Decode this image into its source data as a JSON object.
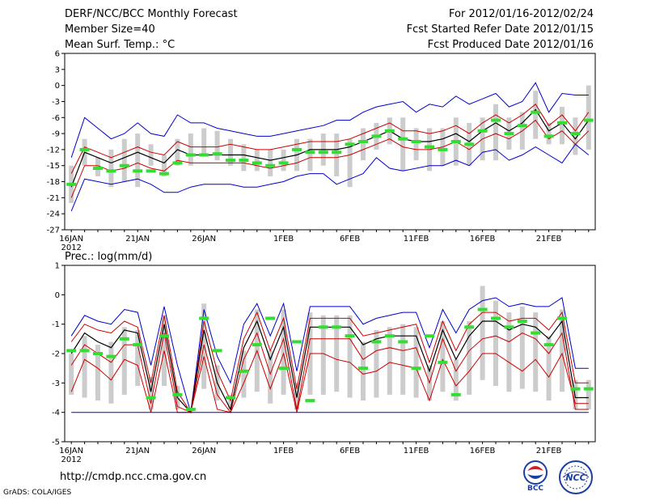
{
  "header": {
    "title": "DERF/NCC/BCC Monthly Forecast",
    "member_size": "Member Size=40",
    "variable_top": "Mean Surf. Temp.: °C",
    "period": "For 2012/01/16-2012/02/24",
    "started": "Fcst Started Refer Date 2012/01/15",
    "produced": "Fcst Produced Date 2012/01/16"
  },
  "footer": {
    "url": "http://cmdp.ncc.cma.gov.cn",
    "credit": "GrADS: COLA/IGES",
    "logo_bcc": "BCC",
    "logo_ncc": "NCC"
  },
  "colors": {
    "envelope": "#0000cc",
    "sigma": "#cc0000",
    "mean": "#000000",
    "obs": "#33dd33",
    "box": "#cccccc"
  },
  "chart_data": [
    {
      "type": "line",
      "title": "Mean Surf. Temp.: °C",
      "xlabel": "",
      "ylabel": "°C",
      "ylim": [
        -27,
        6
      ],
      "yticks": [
        6,
        3,
        0,
        -3,
        -6,
        -9,
        -12,
        -15,
        -18,
        -21,
        -24,
        -27
      ],
      "x": [
        "1/16",
        "1/17",
        "1/18",
        "1/19",
        "1/20",
        "1/21",
        "1/22",
        "1/23",
        "1/24",
        "1/25",
        "1/26",
        "1/27",
        "1/28",
        "1/29",
        "1/30",
        "1/31",
        "2/1",
        "2/2",
        "2/3",
        "2/4",
        "2/5",
        "2/6",
        "2/7",
        "2/8",
        "2/9",
        "2/10",
        "2/11",
        "2/12",
        "2/13",
        "2/14",
        "2/15",
        "2/16",
        "2/17",
        "2/18",
        "2/19",
        "2/20",
        "2/21",
        "2/22",
        "2/23",
        "2/24"
      ],
      "xtick_labels": [
        {
          "i": 0,
          "label": "16JAN",
          "sub": "2012"
        },
        {
          "i": 5,
          "label": "21JAN"
        },
        {
          "i": 10,
          "label": "26JAN"
        },
        {
          "i": 16,
          "label": "1FEB"
        },
        {
          "i": 21,
          "label": "6FEB"
        },
        {
          "i": 26,
          "label": "11FEB"
        },
        {
          "i": 31,
          "label": "16FEB"
        },
        {
          "i": 36,
          "label": "21FEB"
        }
      ],
      "series": [
        {
          "name": "ensemble max",
          "values": [
            -13.5,
            -6,
            -8,
            -10,
            -9,
            -7,
            -9,
            -9.5,
            -5.5,
            -7,
            -7,
            -8,
            -8.5,
            -9,
            -9.5,
            -9.5,
            -9,
            -8.5,
            -8,
            -7.5,
            -6.5,
            -6.5,
            -5,
            -4,
            -3.5,
            -3,
            -5,
            -3.5,
            -4,
            -2,
            -3.5,
            -2.5,
            -1.5,
            -4,
            -3,
            0.5,
            -5,
            -1.5,
            -1.8,
            -1.8
          ]
        },
        {
          "name": "mean + sd",
          "values": [
            -16.5,
            -11.5,
            -12.5,
            -13.5,
            -12.5,
            -11.5,
            -12.5,
            -13,
            -10.5,
            -11.5,
            -11.5,
            -11.5,
            -11,
            -11.5,
            -12,
            -12,
            -11.5,
            -11,
            -10.5,
            -10.5,
            -10.5,
            -10,
            -9,
            -8,
            -7,
            -8.5,
            -8.5,
            -9,
            -8.5,
            -7.5,
            -9,
            -7,
            -5.5,
            -7,
            -5.5,
            -3.5,
            -7.5,
            -5.5,
            -8.5,
            -5
          ]
        },
        {
          "name": "ensemble mean",
          "values": [
            -19,
            -12.5,
            -13.5,
            -14.5,
            -13.5,
            -12.5,
            -13.5,
            -14.5,
            -12,
            -13,
            -13,
            -13,
            -13,
            -13,
            -13.5,
            -14,
            -13.5,
            -13,
            -12,
            -12,
            -12,
            -11.5,
            -10.5,
            -9.5,
            -8.5,
            -10,
            -10.5,
            -10.5,
            -10,
            -9,
            -10.5,
            -8.5,
            -7,
            -8.5,
            -7,
            -4.5,
            -8.5,
            -7,
            -10,
            -6.5
          ]
        },
        {
          "name": "mean - sd",
          "values": [
            -21,
            -15,
            -15,
            -16,
            -15.5,
            -14.5,
            -15.5,
            -16,
            -14,
            -14.5,
            -14.5,
            -14.5,
            -14.5,
            -14.5,
            -15,
            -15.5,
            -15,
            -14.5,
            -13.5,
            -13.5,
            -13.5,
            -13,
            -12,
            -11,
            -10,
            -11.5,
            -12,
            -12,
            -11.5,
            -10.5,
            -12,
            -10,
            -9,
            -10,
            -8.5,
            -6.5,
            -10,
            -8.5,
            -11,
            -8.5
          ]
        },
        {
          "name": "ensemble min",
          "values": [
            -23.5,
            -17.5,
            -18,
            -18.5,
            -18,
            -17.5,
            -18.5,
            -20,
            -20,
            -19,
            -18.5,
            -18.5,
            -18.5,
            -19,
            -19,
            -18.5,
            -18,
            -17,
            -16.5,
            -16.5,
            -18.5,
            -17.5,
            -16.5,
            -13.5,
            -15.5,
            -16,
            -15.5,
            -15,
            -15,
            -14,
            -15,
            -12.5,
            -12,
            -14,
            -13,
            -11.5,
            -13,
            -14.5,
            -11,
            -13
          ]
        },
        {
          "name": "box top (upper quartile)",
          "values": [
            -15,
            -10,
            -13.5,
            -12,
            -10,
            -9,
            -11,
            -13,
            -10,
            -9,
            -8,
            -8.5,
            -10,
            -11,
            -12,
            -12,
            -12,
            -10,
            -10,
            -9,
            -9,
            -10,
            -8,
            -7,
            -6,
            -6,
            -8,
            -8,
            -8,
            -6,
            -7,
            -6,
            -3.5,
            -6,
            -5,
            -1,
            -7,
            -4,
            -6,
            0
          ]
        },
        {
          "name": "box bottom (lower quartile)",
          "values": [
            -22,
            -15,
            -17,
            -19,
            -18,
            -19,
            -15,
            -17,
            -15,
            -15,
            -13,
            -14,
            -15,
            -16,
            -16,
            -17,
            -16,
            -16,
            -16,
            -15,
            -17,
            -19,
            -14,
            -12,
            -11,
            -16,
            -14,
            -16,
            -15,
            -15,
            -15,
            -14,
            -14,
            -12,
            -12,
            -10,
            -11,
            -11,
            -13,
            -12
          ]
        },
        {
          "name": "observed",
          "values": [
            -18.5,
            -12,
            -15.5,
            -16,
            -15,
            -16,
            -16,
            -16.5,
            -14.5,
            -13,
            -13,
            -12.8,
            -14,
            -14,
            -14.5,
            -15,
            -14.5,
            -12,
            -12.5,
            -12.5,
            -12.5,
            -11,
            -10.5,
            -9.5,
            -8.5,
            -10,
            -10.5,
            -11.5,
            -12,
            -10.5,
            -11,
            -8.5,
            -6.5,
            -9,
            -7.5,
            -5,
            -9.5,
            -7,
            -9,
            -6.5
          ]
        }
      ]
    },
    {
      "type": "line",
      "title": "Prec.: log(mm/d)",
      "xlabel": "",
      "ylabel": "log(mm/d)",
      "ylim": [
        -5,
        1
      ],
      "yticks": [
        1,
        0,
        -1,
        -2,
        -3,
        -4,
        -5
      ],
      "x": [
        "1/16",
        "1/17",
        "1/18",
        "1/19",
        "1/20",
        "1/21",
        "1/22",
        "1/23",
        "1/24",
        "1/25",
        "1/26",
        "1/27",
        "1/28",
        "1/29",
        "1/30",
        "1/31",
        "2/1",
        "2/2",
        "2/3",
        "2/4",
        "2/5",
        "2/6",
        "2/7",
        "2/8",
        "2/9",
        "2/10",
        "2/11",
        "2/12",
        "2/13",
        "2/14",
        "2/15",
        "2/16",
        "2/17",
        "2/18",
        "2/19",
        "2/20",
        "2/21",
        "2/22",
        "2/23",
        "2/24"
      ],
      "xtick_labels": [
        {
          "i": 0,
          "label": "16JAN",
          "sub": "2012"
        },
        {
          "i": 5,
          "label": "21JAN"
        },
        {
          "i": 10,
          "label": "26JAN"
        },
        {
          "i": 16,
          "label": "1FEB"
        },
        {
          "i": 21,
          "label": "6FEB"
        },
        {
          "i": 26,
          "label": "11FEB"
        },
        {
          "i": 31,
          "label": "16FEB"
        },
        {
          "i": 36,
          "label": "21FEB"
        }
      ],
      "series": [
        {
          "name": "ensemble max",
          "values": [
            -1.4,
            -0.7,
            -0.9,
            -1.0,
            -0.5,
            -0.6,
            -2.4,
            -0.4,
            -2.4,
            -4.0,
            -0.5,
            -2.1,
            -3.0,
            -1.0,
            -0.3,
            -1.4,
            -0.3,
            -2.6,
            -0.4,
            -0.4,
            -0.4,
            -0.4,
            -1.0,
            -0.8,
            -0.7,
            -0.6,
            -0.6,
            -1.8,
            -0.5,
            -1.3,
            -0.5,
            -0.2,
            -0.1,
            -0.4,
            -0.3,
            -0.4,
            -0.4,
            -0.1,
            -2.5,
            -2.5
          ]
        },
        {
          "name": "mean + sd",
          "values": [
            -1.6,
            -1.0,
            -1.2,
            -1.3,
            -0.9,
            -1.1,
            -3.0,
            -0.7,
            -3.3,
            -4.0,
            -0.9,
            -2.6,
            -3.6,
            -1.5,
            -0.6,
            -1.9,
            -0.8,
            -3.2,
            -0.8,
            -0.8,
            -0.8,
            -0.8,
            -1.4,
            -1.3,
            -1.2,
            -1.1,
            -1.0,
            -2.3,
            -0.9,
            -1.9,
            -1.0,
            -0.6,
            -0.6,
            -0.9,
            -0.8,
            -0.8,
            -1.2,
            -0.6,
            -3.0,
            -3.0
          ]
        },
        {
          "name": "ensemble mean",
          "values": [
            -2.0,
            -1.3,
            -1.6,
            -1.8,
            -1.2,
            -1.3,
            -3.3,
            -1.0,
            -3.5,
            -4.0,
            -1.2,
            -3.0,
            -3.9,
            -1.8,
            -0.9,
            -2.2,
            -1.1,
            -3.5,
            -1.1,
            -1.1,
            -1.1,
            -1.1,
            -1.7,
            -1.5,
            -1.4,
            -1.4,
            -1.4,
            -2.6,
            -1.2,
            -2.2,
            -1.4,
            -0.9,
            -0.9,
            -1.2,
            -1.0,
            -1.1,
            -1.5,
            -0.9,
            -3.5,
            -3.5
          ]
        },
        {
          "name": "mean - sd",
          "values": [
            -2.4,
            -1.7,
            -2.0,
            -2.3,
            -1.7,
            -1.7,
            -3.7,
            -1.3,
            -3.8,
            -4.0,
            -1.7,
            -3.4,
            -4.0,
            -2.2,
            -1.3,
            -2.7,
            -1.5,
            -3.9,
            -1.5,
            -1.5,
            -1.5,
            -1.5,
            -2.2,
            -1.9,
            -1.8,
            -1.9,
            -1.8,
            -3.0,
            -1.5,
            -2.6,
            -1.9,
            -1.5,
            -1.4,
            -1.6,
            -1.3,
            -1.5,
            -2.0,
            -1.3,
            -3.9,
            -3.9
          ]
        },
        {
          "name": "mean - 2sd",
          "values": [
            -3.3,
            -2.2,
            -2.5,
            -2.9,
            -2.2,
            -2.4,
            -4.0,
            -1.9,
            -4.0,
            -4.0,
            -2.1,
            -3.9,
            -4.0,
            -3.0,
            -1.9,
            -3.2,
            -2.0,
            -4.0,
            -2.0,
            -2.0,
            -2.2,
            -2.3,
            -2.7,
            -2.6,
            -2.3,
            -2.4,
            -2.5,
            -3.6,
            -2.2,
            -3.1,
            -2.6,
            -2.0,
            -2.0,
            -2.3,
            -2.6,
            -2.2,
            -2.8,
            -2.0,
            -3.7,
            -3.7
          ]
        },
        {
          "name": "ensemble min",
          "values": [
            -4.0,
            -4.0,
            -4.0,
            -4.0,
            -4.0,
            -4.0,
            -4.0,
            -4.0,
            -4.0,
            -4.0,
            -4.0,
            -4.0,
            -4.0,
            -4.0,
            -4.0,
            -4.0,
            -4.0,
            -4.0,
            -4.0,
            -4.0,
            -4.0,
            -4.0,
            -4.0,
            -4.0,
            -4.0,
            -4.0,
            -4.0,
            -4.0,
            -4.0,
            -4.0,
            -4.0,
            -4.0,
            -4.0,
            -4.0,
            -4.0,
            -4.0,
            -4.0,
            -4.0,
            -4.0,
            -4.0
          ]
        },
        {
          "name": "box top (upper quartile)",
          "values": [
            -2.0,
            -1.4,
            -1.7,
            -1.6,
            -1.1,
            -1.2,
            -2.8,
            -0.7,
            -3.1,
            -3.9,
            -0.3,
            -2.4,
            -3.4,
            -1.9,
            -0.5,
            -1.9,
            -0.5,
            -3.0,
            -0.6,
            -0.7,
            -0.7,
            -0.7,
            -1.6,
            -1.2,
            -1.1,
            -1.0,
            -1.1,
            -2.4,
            -0.9,
            -2.2,
            -0.9,
            0.3,
            -0.2,
            -0.6,
            -0.4,
            -0.6,
            -1.4,
            -0.5,
            -2.9,
            -2.9
          ]
        },
        {
          "name": "box bottom (lower quartile)",
          "values": [
            -3.4,
            -3.5,
            -3.6,
            -3.7,
            -3.4,
            -3.1,
            -3.9,
            -3.1,
            -3.9,
            -4.0,
            -3.2,
            -3.6,
            -3.9,
            -3.5,
            -3.3,
            -3.7,
            -3.4,
            -3.9,
            -3.4,
            -3.4,
            -3.3,
            -3.5,
            -3.6,
            -3.5,
            -3.4,
            -3.4,
            -3.5,
            -3.6,
            -3.3,
            -3.6,
            -3.4,
            -2.9,
            -3.1,
            -3.3,
            -3.2,
            -3.3,
            -3.6,
            -3.3,
            -3.9,
            -3.9
          ]
        },
        {
          "name": "observed",
          "values": [
            -1.9,
            -1.9,
            -2.0,
            -2.1,
            -1.5,
            -1.7,
            -3.5,
            -1.4,
            -3.4,
            -3.9,
            -0.8,
            -1.9,
            -3.5,
            -2.6,
            -1.7,
            -0.8,
            -2.5,
            -1.6,
            -3.6,
            -1.1,
            -1.1,
            -1.4,
            -2.5,
            -1.6,
            -1.4,
            -1.6,
            -2.5,
            -1.4,
            -2.3,
            -3.4,
            -1.1,
            -0.5,
            -0.8,
            -1.1,
            -0.9,
            -1.3,
            -1.7,
            -0.8,
            -3.2,
            -3.2
          ]
        }
      ]
    }
  ]
}
